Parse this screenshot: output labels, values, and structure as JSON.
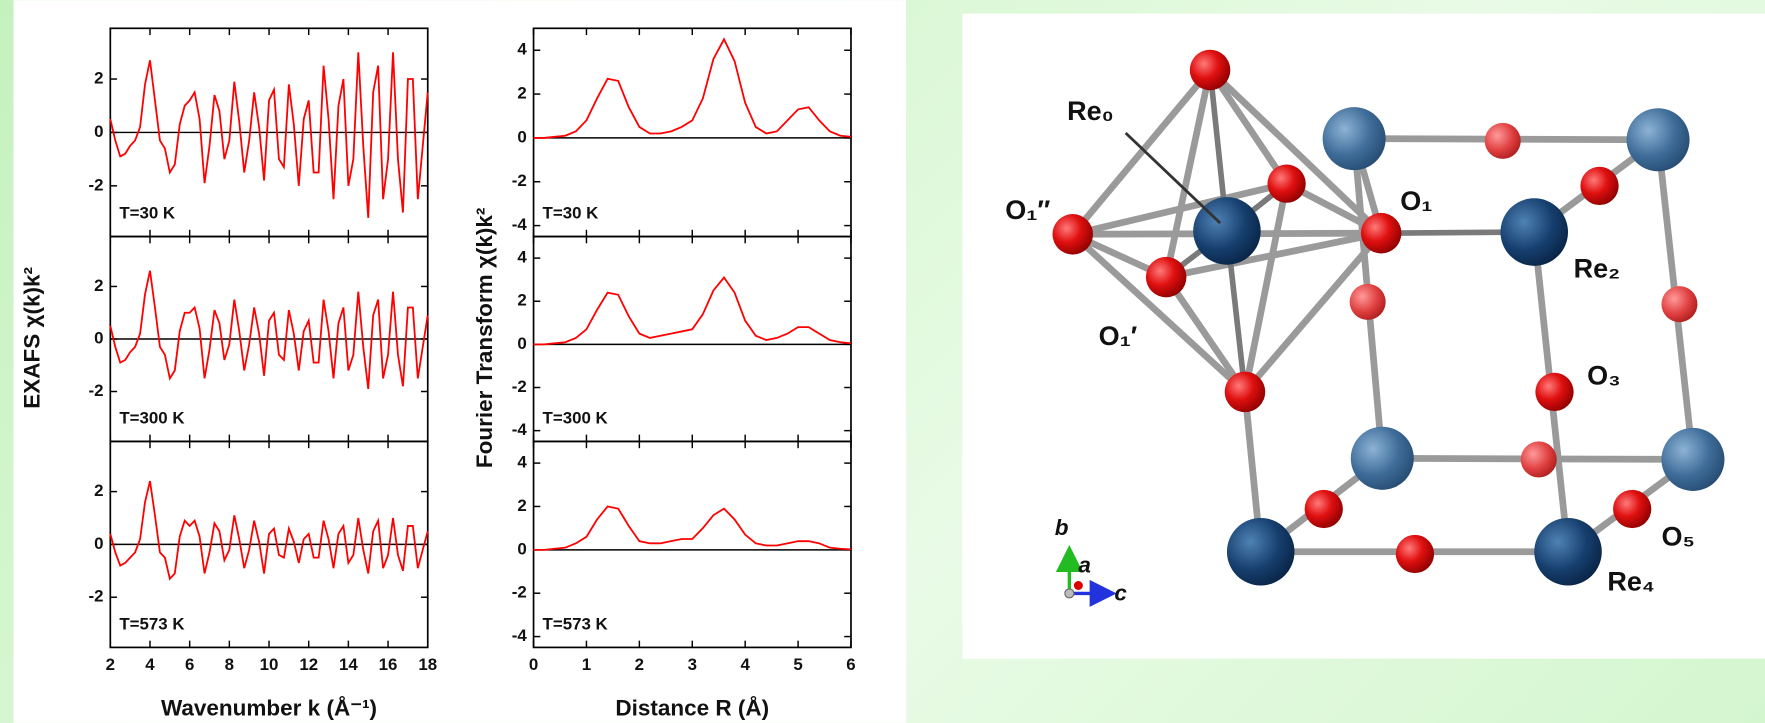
{
  "chart_data": [
    {
      "type": "line",
      "annotation": "T=30 K",
      "y_label": "EXAFS  χ(k)k²",
      "xlim": [
        2,
        18
      ],
      "xticks": [
        2,
        4,
        6,
        8,
        10,
        12,
        14,
        16,
        18
      ],
      "show_xtick_labels": false,
      "ylim": [
        -3.9,
        3.9
      ],
      "yticks": [
        -2,
        0,
        2
      ],
      "x": [
        2,
        2.25,
        2.5,
        2.75,
        3,
        3.25,
        3.5,
        3.75,
        4,
        4.25,
        4.5,
        4.75,
        5,
        5.25,
        5.5,
        5.75,
        6,
        6.25,
        6.5,
        6.75,
        7,
        7.25,
        7.5,
        7.75,
        8,
        8.25,
        8.5,
        8.75,
        9,
        9.25,
        9.5,
        9.75,
        10,
        10.25,
        10.5,
        10.75,
        11,
        11.25,
        11.5,
        11.75,
        12,
        12.25,
        12.5,
        12.75,
        13,
        13.25,
        13.5,
        13.75,
        14,
        14.25,
        14.5,
        14.75,
        15,
        15.25,
        15.5,
        15.75,
        16,
        16.25,
        16.5,
        16.75,
        17,
        17.25,
        17.5,
        17.75,
        18
      ],
      "series": [
        {
          "color": "#ff0000",
          "values": [
            0.5,
            -0.3,
            -0.9,
            -0.8,
            -0.5,
            -0.3,
            0.2,
            1.8,
            2.7,
            1.2,
            -0.3,
            -0.6,
            -1.5,
            -1.2,
            0.3,
            1.0,
            1.2,
            1.5,
            0.5,
            -1.9,
            -0.5,
            1.4,
            0.8,
            -1.0,
            -0.3,
            1.9,
            0.4,
            -1.5,
            -0.3,
            1.5,
            0.2,
            -1.8,
            1.2,
            1.6,
            -1.0,
            -1.3,
            1.8,
            0.3,
            -2.0,
            0.5,
            1.2,
            -1.5,
            -1.5,
            2.5,
            0.5,
            -2.5,
            1.0,
            2.0,
            -2.0,
            -1.0,
            3.0,
            -0.5,
            -3.2,
            1.5,
            2.5,
            -2.5,
            -1.0,
            3.0,
            -1.0,
            -3.0,
            2.0,
            2.0,
            -2.5,
            -0.5,
            1.5
          ]
        }
      ]
    },
    {
      "type": "line",
      "annotation": "T=300 K",
      "xlim": [
        2,
        18
      ],
      "xticks": [
        2,
        4,
        6,
        8,
        10,
        12,
        14,
        16,
        18
      ],
      "show_xtick_labels": false,
      "ylim": [
        -3.9,
        3.9
      ],
      "yticks": [
        -2,
        0,
        2
      ],
      "x": [
        2,
        2.25,
        2.5,
        2.75,
        3,
        3.25,
        3.5,
        3.75,
        4,
        4.25,
        4.5,
        4.75,
        5,
        5.25,
        5.5,
        5.75,
        6,
        6.25,
        6.5,
        6.75,
        7,
        7.25,
        7.5,
        7.75,
        8,
        8.25,
        8.5,
        8.75,
        9,
        9.25,
        9.5,
        9.75,
        10,
        10.25,
        10.5,
        10.75,
        11,
        11.25,
        11.5,
        11.75,
        12,
        12.25,
        12.5,
        12.75,
        13,
        13.25,
        13.5,
        13.75,
        14,
        14.25,
        14.5,
        14.75,
        15,
        15.25,
        15.5,
        15.75,
        16,
        16.25,
        16.5,
        16.75,
        17,
        17.25,
        17.5,
        17.75,
        18
      ],
      "series": [
        {
          "color": "#ff0000",
          "values": [
            0.5,
            -0.3,
            -0.9,
            -0.8,
            -0.5,
            -0.3,
            0.2,
            1.7,
            2.6,
            1.2,
            -0.3,
            -0.6,
            -1.5,
            -1.2,
            0.3,
            1.0,
            1.0,
            1.2,
            0.4,
            -1.5,
            -0.4,
            1.1,
            0.6,
            -0.8,
            -0.2,
            1.5,
            0.3,
            -1.2,
            -0.2,
            1.2,
            0.2,
            -1.4,
            0.7,
            1.0,
            -0.6,
            -0.8,
            1.1,
            0.2,
            -1.2,
            0.3,
            0.7,
            -0.9,
            -0.9,
            1.5,
            0.3,
            -1.5,
            0.6,
            1.2,
            -1.2,
            -0.6,
            1.8,
            -0.3,
            -1.9,
            0.9,
            1.5,
            -1.5,
            -0.6,
            1.8,
            -0.6,
            -1.8,
            1.2,
            1.2,
            -1.5,
            -0.3,
            0.9
          ]
        }
      ]
    },
    {
      "type": "line",
      "annotation": "T=573 K",
      "x_label": "Wavenumber  k (Å⁻¹)",
      "xlim": [
        2,
        18
      ],
      "xticks": [
        2,
        4,
        6,
        8,
        10,
        12,
        14,
        16,
        18
      ],
      "show_xtick_labels": true,
      "ylim": [
        -3.9,
        3.9
      ],
      "yticks": [
        -2,
        0,
        2
      ],
      "x": [
        2,
        2.25,
        2.5,
        2.75,
        3,
        3.25,
        3.5,
        3.75,
        4,
        4.25,
        4.5,
        4.75,
        5,
        5.25,
        5.5,
        5.75,
        6,
        6.25,
        6.5,
        6.75,
        7,
        7.25,
        7.5,
        7.75,
        8,
        8.25,
        8.5,
        8.75,
        9,
        9.25,
        9.5,
        9.75,
        10,
        10.25,
        10.5,
        10.75,
        11,
        11.25,
        11.5,
        11.75,
        12,
        12.25,
        12.5,
        12.75,
        13,
        13.25,
        13.5,
        13.75,
        14,
        14.25,
        14.5,
        14.75,
        15,
        15.25,
        15.5,
        15.75,
        16,
        16.25,
        16.5,
        16.75,
        17,
        17.25,
        17.5,
        17.75,
        18
      ],
      "series": [
        {
          "color": "#ff0000",
          "values": [
            0.4,
            -0.3,
            -0.8,
            -0.7,
            -0.5,
            -0.3,
            0.2,
            1.6,
            2.4,
            1.1,
            -0.3,
            -0.5,
            -1.3,
            -1.1,
            0.3,
            0.9,
            0.7,
            0.9,
            0.3,
            -1.1,
            -0.3,
            0.8,
            0.5,
            -0.6,
            -0.2,
            1.1,
            0.2,
            -0.9,
            -0.2,
            0.9,
            0.1,
            -1.1,
            0.4,
            0.6,
            -0.4,
            -0.5,
            0.6,
            0.1,
            -0.7,
            0.2,
            0.4,
            -0.5,
            -0.5,
            0.9,
            0.2,
            -0.9,
            0.4,
            0.7,
            -0.7,
            -0.4,
            1.0,
            -0.2,
            -1.1,
            0.5,
            0.9,
            -0.9,
            -0.4,
            1.0,
            -0.4,
            -1.0,
            0.7,
            0.7,
            -0.9,
            -0.2,
            0.5
          ]
        }
      ]
    },
    {
      "type": "line",
      "annotation": "T=30 K",
      "y_label": "Fourier Transform  χ(k)k²",
      "xlim": [
        0,
        6
      ],
      "xticks": [
        0,
        1,
        2,
        3,
        4,
        5,
        6
      ],
      "show_xtick_labels": false,
      "ylim": [
        -4.5,
        5
      ],
      "yticks": [
        -4,
        -2,
        0,
        2,
        4
      ],
      "x": [
        0,
        0.2,
        0.4,
        0.6,
        0.8,
        1.0,
        1.2,
        1.4,
        1.6,
        1.8,
        2.0,
        2.2,
        2.4,
        2.6,
        2.8,
        3.0,
        3.2,
        3.4,
        3.6,
        3.8,
        4.0,
        4.2,
        4.4,
        4.6,
        4.8,
        5.0,
        5.2,
        5.4,
        5.6,
        5.8,
        6.0
      ],
      "series": [
        {
          "color": "#ff0000",
          "values": [
            0,
            0,
            0.05,
            0.1,
            0.3,
            0.8,
            1.8,
            2.7,
            2.6,
            1.4,
            0.5,
            0.2,
            0.2,
            0.3,
            0.5,
            0.8,
            1.8,
            3.6,
            4.5,
            3.5,
            1.6,
            0.5,
            0.2,
            0.3,
            0.8,
            1.3,
            1.4,
            0.8,
            0.3,
            0.1,
            0.05
          ]
        }
      ]
    },
    {
      "type": "line",
      "annotation": "T=300 K",
      "xlim": [
        0,
        6
      ],
      "xticks": [
        0,
        1,
        2,
        3,
        4,
        5,
        6
      ],
      "show_xtick_labels": false,
      "ylim": [
        -4.5,
        5
      ],
      "yticks": [
        -4,
        -2,
        0,
        2,
        4
      ],
      "x": [
        0,
        0.2,
        0.4,
        0.6,
        0.8,
        1.0,
        1.2,
        1.4,
        1.6,
        1.8,
        2.0,
        2.2,
        2.4,
        2.6,
        2.8,
        3.0,
        3.2,
        3.4,
        3.6,
        3.8,
        4.0,
        4.2,
        4.4,
        4.6,
        4.8,
        5.0,
        5.2,
        5.4,
        5.6,
        5.8,
        6.0
      ],
      "series": [
        {
          "color": "#ff0000",
          "values": [
            0,
            0,
            0.05,
            0.1,
            0.3,
            0.7,
            1.6,
            2.4,
            2.3,
            1.3,
            0.5,
            0.3,
            0.4,
            0.5,
            0.6,
            0.7,
            1.4,
            2.5,
            3.1,
            2.4,
            1.1,
            0.4,
            0.2,
            0.3,
            0.5,
            0.8,
            0.8,
            0.5,
            0.2,
            0.1,
            0.05
          ]
        }
      ]
    },
    {
      "type": "line",
      "annotation": "T=573 K",
      "x_label": "Distance R (Å)",
      "xlim": [
        0,
        6
      ],
      "xticks": [
        0,
        1,
        2,
        3,
        4,
        5,
        6
      ],
      "show_xtick_labels": true,
      "ylim": [
        -4.5,
        5
      ],
      "yticks": [
        -4,
        -2,
        0,
        2,
        4
      ],
      "x": [
        0,
        0.2,
        0.4,
        0.6,
        0.8,
        1.0,
        1.2,
        1.4,
        1.6,
        1.8,
        2.0,
        2.2,
        2.4,
        2.6,
        2.8,
        3.0,
        3.2,
        3.4,
        3.6,
        3.8,
        4.0,
        4.2,
        4.4,
        4.6,
        4.8,
        5.0,
        5.2,
        5.4,
        5.6,
        5.8,
        6.0
      ],
      "series": [
        {
          "color": "#ff0000",
          "values": [
            0,
            0,
            0.05,
            0.1,
            0.3,
            0.6,
            1.4,
            2.0,
            1.9,
            1.1,
            0.4,
            0.3,
            0.3,
            0.4,
            0.5,
            0.5,
            1.0,
            1.6,
            1.9,
            1.4,
            0.7,
            0.3,
            0.2,
            0.2,
            0.3,
            0.4,
            0.4,
            0.3,
            0.1,
            0.05,
            0.02
          ]
        }
      ]
    }
  ],
  "structure": {
    "labels": [
      "Re₀",
      "O₁″",
      "O₁′",
      "O₁",
      "Re₂",
      "O₃",
      "O₅",
      "Re₄"
    ],
    "axes": [
      "b",
      "a",
      "c"
    ]
  }
}
